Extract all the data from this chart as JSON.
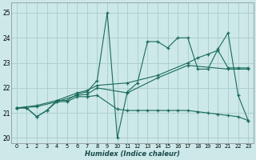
{
  "bg_color": "#cce8e8",
  "grid_color": "#aacccc",
  "line_color": "#1a6b5a",
  "xlabel": "Humidex (Indice chaleur)",
  "xlim": [
    -0.5,
    23.5
  ],
  "ylim": [
    19.8,
    25.4
  ],
  "yticks": [
    20,
    21,
    22,
    23,
    24,
    25
  ],
  "xticks": [
    0,
    1,
    2,
    3,
    4,
    5,
    6,
    7,
    8,
    9,
    10,
    11,
    12,
    13,
    14,
    15,
    16,
    17,
    18,
    19,
    20,
    21,
    22,
    23
  ],
  "series": [
    {
      "x": [
        0,
        1,
        2,
        3,
        4,
        5,
        6,
        7,
        8,
        9,
        10,
        11,
        12,
        13,
        14,
        15,
        16,
        17,
        18,
        19,
        20,
        21,
        22,
        23
      ],
      "y": [
        21.2,
        21.2,
        20.85,
        21.1,
        21.5,
        21.5,
        21.75,
        21.85,
        22.3,
        25.0,
        20.0,
        21.85,
        22.2,
        23.85,
        23.85,
        23.6,
        24.0,
        24.0,
        22.75,
        22.75,
        23.55,
        24.2,
        21.7,
        20.7
      ]
    },
    {
      "x": [
        0,
        2,
        4,
        6,
        7,
        8,
        11,
        14,
        17,
        18,
        19,
        20,
        21,
        22,
        23
      ],
      "y": [
        21.2,
        21.3,
        21.5,
        21.8,
        21.9,
        22.1,
        22.2,
        22.5,
        23.0,
        23.2,
        23.35,
        23.5,
        22.8,
        22.8,
        22.8
      ]
    },
    {
      "x": [
        0,
        2,
        4,
        6,
        7,
        8,
        11,
        14,
        17,
        21,
        23
      ],
      "y": [
        21.2,
        21.25,
        21.45,
        21.7,
        21.75,
        22.0,
        21.8,
        22.4,
        22.9,
        22.75,
        22.75
      ]
    },
    {
      "x": [
        0,
        1,
        2,
        3,
        4,
        5,
        6,
        7,
        8,
        10,
        11,
        12,
        13,
        14,
        15,
        16,
        17,
        18,
        19,
        20,
        21,
        22,
        23
      ],
      "y": [
        21.2,
        21.2,
        20.85,
        21.1,
        21.45,
        21.45,
        21.65,
        21.65,
        21.7,
        21.15,
        21.1,
        21.1,
        21.1,
        21.1,
        21.1,
        21.1,
        21.1,
        21.05,
        21.0,
        20.95,
        20.9,
        20.85,
        20.7
      ]
    }
  ]
}
